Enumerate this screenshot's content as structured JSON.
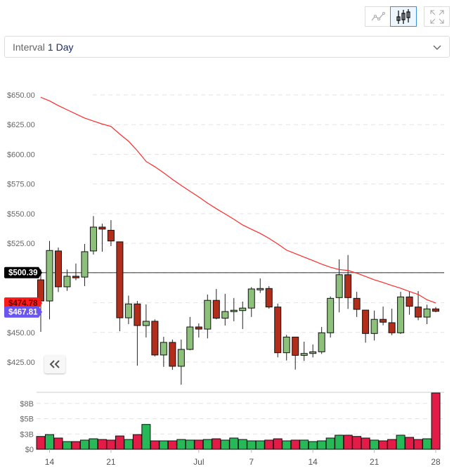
{
  "toolbar": {
    "buttons": [
      {
        "name": "line-chart",
        "icon": "line-chart-icon",
        "active": false
      },
      {
        "name": "candlestick-chart",
        "icon": "candlestick-icon",
        "active": true
      },
      {
        "name": "fullscreen",
        "icon": "expand-icon",
        "active": false
      }
    ]
  },
  "interval": {
    "label": "Interval",
    "value": "1 Day"
  },
  "colors": {
    "up": "#8dc07b",
    "down": "#b22e1a",
    "vol_up": "#27b857",
    "vol_down": "#e31b47",
    "ma": "#ff2a2a",
    "ref_tag": "#000000",
    "ma_tag": "#ff1a1a",
    "last_tag": "#6a55f0",
    "active_border": "#3a8fd9"
  },
  "chart_data": {
    "type": "candlestick",
    "price_axis": {
      "ticks": [
        {
          "v": 650,
          "label": "$650.00"
        },
        {
          "v": 625,
          "label": "$625.00"
        },
        {
          "v": 600,
          "label": "$600.00"
        },
        {
          "v": 575,
          "label": "$575.00"
        },
        {
          "v": 550,
          "label": "$550.00"
        },
        {
          "v": 525,
          "label": "$525.00"
        },
        {
          "v": 500,
          "label": "$500.00"
        },
        {
          "v": 475,
          "label": "$475.00"
        },
        {
          "v": 450,
          "label": "$450.00"
        },
        {
          "v": 425,
          "label": "$425.00"
        }
      ],
      "visible_labels": [
        "$650.00",
        "$625.00",
        "$600.00",
        "$575.00",
        "$550.00",
        "$525.00",
        "$450.00",
        "$425.00"
      ],
      "grid": true
    },
    "volume_axis": {
      "ticks": [
        {
          "v": 0,
          "label": "$0"
        },
        {
          "v": 2.5,
          "label": "$3B"
        },
        {
          "v": 5,
          "label": "$5B"
        },
        {
          "v": 7.5,
          "label": "$8B"
        }
      ],
      "unit": "B"
    },
    "x_ticks": [
      {
        "index": 1,
        "label": "14"
      },
      {
        "index": 8,
        "label": "21"
      },
      {
        "index": 18,
        "label": "Jul"
      },
      {
        "index": 24,
        "label": "7"
      },
      {
        "index": 31,
        "label": "14"
      },
      {
        "index": 38,
        "label": "21"
      },
      {
        "index": 45,
        "label": "28"
      }
    ],
    "price_tags": [
      {
        "value": 500.39,
        "label": "$500.39",
        "kind": "reference-line"
      },
      {
        "value": 474.78,
        "label": "$474.78",
        "kind": "moving-average"
      },
      {
        "value": 467.81,
        "label": "$467.81",
        "kind": "last-price"
      }
    ],
    "columns": [
      "date",
      "open",
      "high",
      "low",
      "close",
      "volume_B"
    ],
    "candles": [
      [
        "Jun 13",
        494.3,
        503,
        450.5,
        476.5,
        2.1
      ],
      [
        "Jun 14",
        476.5,
        527,
        461,
        519,
        2.4
      ],
      [
        "Jun 15",
        518.6,
        521.5,
        484,
        488.4,
        1.84
      ],
      [
        "Jun 16",
        488.4,
        503,
        485,
        497.3,
        1.26
      ],
      [
        "Jun 17",
        497.3,
        508,
        494,
        496,
        1.26
      ],
      [
        "Jun 18",
        496.6,
        524.5,
        489,
        518,
        1.5
      ],
      [
        "Jun 19",
        518.6,
        548,
        515.6,
        538.7,
        1.72
      ],
      [
        "Jun 20",
        538.7,
        541.6,
        518,
        537,
        1.6
      ],
      [
        "Jun 21",
        536,
        544.6,
        522.7,
        527,
        1.5
      ],
      [
        "Jun 22",
        526.3,
        526.3,
        451,
        462.3,
        2.18
      ],
      [
        "Jun 23",
        462.3,
        481,
        457,
        474,
        1.6
      ],
      [
        "Jun 24",
        474,
        476.5,
        422,
        455.8,
        2.4
      ],
      [
        "Jun 25",
        455.8,
        473.6,
        445.7,
        459.4,
        4.06
      ],
      [
        "Jun 26",
        459.4,
        461,
        429.8,
        431,
        1.38
      ],
      [
        "Jun 27",
        431,
        446.3,
        421,
        441.6,
        1.38
      ],
      [
        "Jun 28",
        441.6,
        444,
        418.5,
        421.5,
        1.38
      ],
      [
        "Jun 29",
        421.5,
        444,
        406,
        435.7,
        1.6
      ],
      [
        "Jun 30",
        435.7,
        463,
        435,
        454.6,
        1.5
      ],
      [
        "Jul 1",
        454.6,
        457.6,
        445.7,
        452.8,
        1.5
      ],
      [
        "Jul 2",
        452.8,
        481.9,
        445,
        477,
        1.6
      ],
      [
        "Jul 3",
        477,
        486.6,
        461,
        462,
        1.72
      ],
      [
        "Jul 4",
        462,
        482.5,
        455.8,
        467.6,
        1.5
      ],
      [
        "Jul 5",
        467.5,
        479,
        459.4,
        468.7,
        1.84
      ],
      [
        "Jul 6",
        468.4,
        476,
        452.8,
        470.5,
        1.6
      ],
      [
        "Jul 7",
        470.5,
        488.2,
        463,
        486.6,
        1.38
      ],
      [
        "Jul 8",
        486,
        495.5,
        483.3,
        487,
        1.38
      ],
      [
        "Jul 9",
        487,
        489,
        470,
        471.4,
        1.5
      ],
      [
        "Jul 10",
        471.4,
        474.3,
        429,
        432.9,
        1.72
      ],
      [
        "Jul 11",
        432.9,
        448,
        426.4,
        446.1,
        1.38
      ],
      [
        "Jul 12",
        446.1,
        446.1,
        418.7,
        430.7,
        1.5
      ],
      [
        "Jul 13",
        430.7,
        442.2,
        426,
        432.3,
        1.5
      ],
      [
        "Jul 14",
        432.3,
        439.8,
        429,
        433.7,
        1.26
      ],
      [
        "Jul 15",
        433.7,
        454.6,
        431.9,
        449.7,
        1.38
      ],
      [
        "Jul 16",
        449.7,
        480.3,
        445.7,
        478.7,
        1.84
      ],
      [
        "Jul 17",
        479.3,
        511.5,
        466.9,
        498.6,
        2.3
      ],
      [
        "Jul 18",
        498.6,
        515.2,
        469.8,
        479.3,
        2.3
      ],
      [
        "Jul 19",
        478.7,
        484.2,
        463,
        469.4,
        2.1
      ],
      [
        "Jul 20",
        468.8,
        468.8,
        441.4,
        449.1,
        1.84
      ],
      [
        "Jul 21",
        449.1,
        468.4,
        443.2,
        461,
        1.5
      ],
      [
        "Jul 22",
        461,
        471.8,
        456,
        458.6,
        1.38
      ],
      [
        "Jul 23",
        458.2,
        470,
        447.7,
        449.7,
        1.6
      ],
      [
        "Jul 24",
        449.7,
        484.2,
        448.7,
        479.9,
        2.3
      ],
      [
        "Jul 25",
        479.9,
        484.8,
        464.9,
        472,
        1.95
      ],
      [
        "Jul 26",
        471.4,
        484.8,
        460.3,
        462.9,
        1.6
      ],
      [
        "Jul 27",
        462.9,
        473.4,
        457,
        469.8,
        1.72
      ],
      [
        "Jul 28",
        469.8,
        471.4,
        467,
        467.81,
        9.2
      ]
    ],
    "moving_average": [
      648,
      645,
      641,
      637.5,
      634,
      630.5,
      628,
      625.5,
      623.5,
      617,
      611,
      603,
      594,
      589.5,
      584.4,
      578.9,
      573.8,
      568.9,
      564.1,
      558.9,
      554.2,
      549.8,
      545.3,
      540.5,
      536.9,
      533.4,
      529.2,
      524.5,
      519.3,
      516.4,
      513.4,
      510.5,
      507.5,
      504.9,
      502.9,
      502.2,
      499.9,
      497.1,
      494.3,
      492,
      489.5,
      487.2,
      484.5,
      482,
      477.5,
      474.78
    ]
  }
}
